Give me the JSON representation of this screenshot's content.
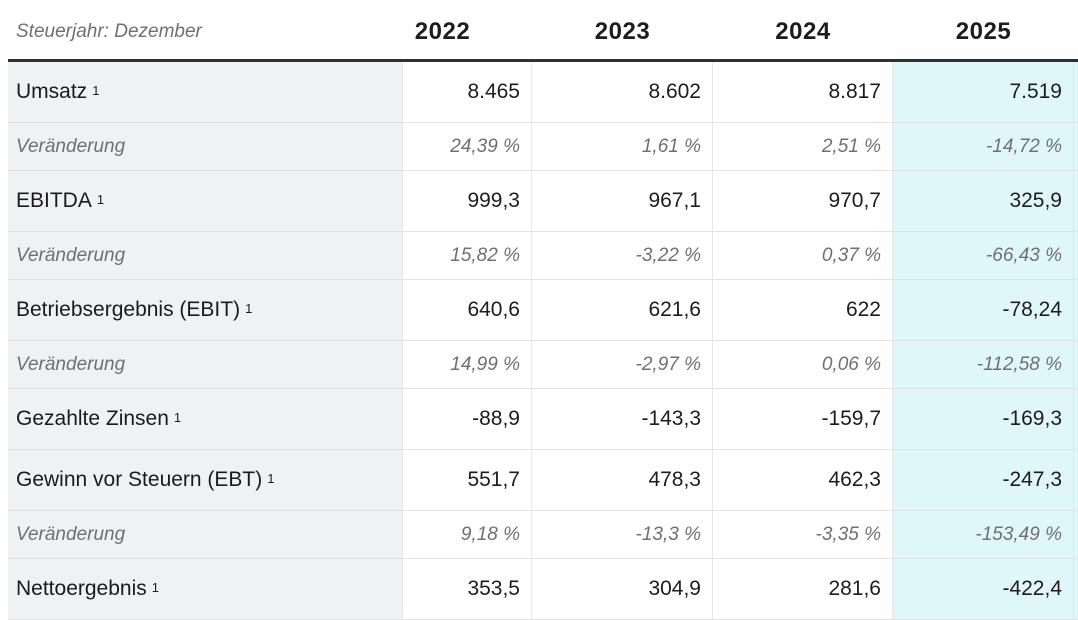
{
  "table": {
    "header": {
      "label": "Steuerjahr: Dezember",
      "years": [
        "2022",
        "2023",
        "2024",
        "2025"
      ]
    },
    "rows": [
      {
        "type": "metric",
        "label": "Umsatz",
        "sup": "1",
        "values": [
          "8.465",
          "8.602",
          "8.817",
          "7.519"
        ]
      },
      {
        "type": "change",
        "label": "Veränderung",
        "values": [
          "24,39 %",
          "1,61 %",
          "2,51 %",
          "-14,72 %"
        ]
      },
      {
        "type": "metric",
        "label": "EBITDA",
        "sup": "1",
        "values": [
          "999,3",
          "967,1",
          "970,7",
          "325,9"
        ]
      },
      {
        "type": "change",
        "label": "Veränderung",
        "values": [
          "15,82 %",
          "-3,22 %",
          "0,37 %",
          "-66,43 %"
        ]
      },
      {
        "type": "metric",
        "label": "Betriebsergebnis (EBIT)",
        "sup": "1",
        "values": [
          "640,6",
          "621,6",
          "622",
          "-78,24"
        ]
      },
      {
        "type": "change",
        "label": "Veränderung",
        "values": [
          "14,99 %",
          "-2,97 %",
          "0,06 %",
          "-112,58 %"
        ]
      },
      {
        "type": "metric",
        "label": "Gezahlte Zinsen",
        "sup": "1",
        "values": [
          "-88,9",
          "-143,3",
          "-159,7",
          "-169,3"
        ]
      },
      {
        "type": "metric",
        "label": "Gewinn vor Steuern (EBT)",
        "sup": "1",
        "values": [
          "551,7",
          "478,3",
          "462,3",
          "-247,3"
        ]
      },
      {
        "type": "change",
        "label": "Veränderung",
        "values": [
          "9,18 %",
          "-13,3 %",
          "-3,35 %",
          "-153,49 %"
        ]
      },
      {
        "type": "metric",
        "label": "Nettoergebnis",
        "sup": "1",
        "values": [
          "353,5",
          "304,9",
          "281,6",
          "-422,4"
        ]
      }
    ],
    "colors": {
      "highlight_column_bg": "#e0f7fa",
      "label_column_bg": "#f0f1f5",
      "header_border": "#303032",
      "row_divider": "#e2e2e6",
      "muted_text": "#6f7074",
      "dark_text": "#1d1d1f"
    }
  }
}
